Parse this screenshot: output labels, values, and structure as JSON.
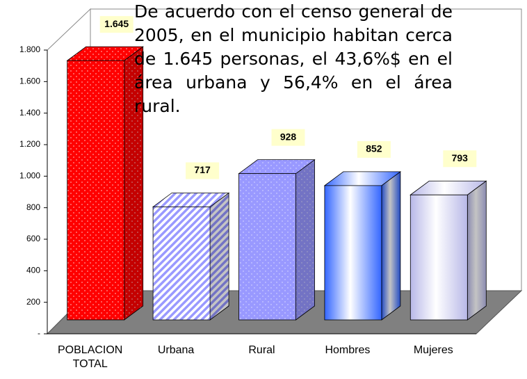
{
  "chart_data": {
    "type": "bar",
    "categories": [
      "POBLACION TOTAL",
      "Urbana",
      "Rural",
      "Hombres",
      "Mujeres"
    ],
    "values": [
      1645,
      717,
      928,
      852,
      793
    ],
    "value_labels": [
      "1.645",
      "717",
      "928",
      "852",
      "793"
    ],
    "colors": [
      "#ff0000",
      "#9999ff",
      "#9999ff",
      "#3366ff",
      "#b8b8e8"
    ],
    "ylim": [
      0,
      1800
    ],
    "yticks": [
      {
        "value": 0,
        "label": "-"
      },
      200,
      400,
      600,
      800,
      {
        "value": 1000,
        "label": "1.000"
      },
      {
        "value": 1200,
        "label": "1.200"
      },
      {
        "value": 1400,
        "label": "1.400"
      },
      {
        "value": 1600,
        "label": "1.600"
      },
      {
        "value": 1800,
        "label": "1.800"
      }
    ],
    "annotation": "De acuerdo con el censo general de 2005, en el municipio habitan cerca de 1.645 personas, el 43,6%$ en el área urbana y 56,4% en el área rural."
  }
}
